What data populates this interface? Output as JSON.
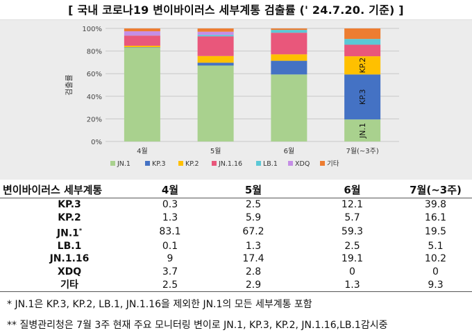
{
  "title": "[ 국내 코로나19 변이바이러스 세부계통 검출률 (' 24.7.20. 기준) ]",
  "chart_data": {
    "type": "bar",
    "stacked": true,
    "percent": true,
    "categories": [
      "4월",
      "5월",
      "6월",
      "7월(~3주)"
    ],
    "ylabel": "검출률",
    "ylim": [
      0,
      100
    ],
    "yticks": [
      "0%",
      "20%",
      "40%",
      "60%",
      "80%",
      "100%"
    ],
    "grid": true,
    "legend_position": "bottom",
    "series": [
      {
        "name": "JN.1",
        "color": "#a9d18e",
        "values": [
          83.1,
          67.2,
          59.3,
          19.5
        ]
      },
      {
        "name": "KP.3",
        "color": "#4472c4",
        "values": [
          0.3,
          2.5,
          12.1,
          39.8
        ]
      },
      {
        "name": "KP.2",
        "color": "#ffc000",
        "values": [
          1.3,
          5.9,
          5.7,
          16.1
        ]
      },
      {
        "name": "JN.1.16",
        "color": "#e9577b",
        "values": [
          9,
          17.4,
          19.1,
          10.2
        ]
      },
      {
        "name": "LB.1",
        "color": "#5bc8d6",
        "values": [
          0.1,
          1.3,
          2.5,
          5.1
        ]
      },
      {
        "name": "XDQ",
        "color": "#c58ee6",
        "values": [
          3.7,
          2.8,
          0,
          0
        ]
      },
      {
        "name": "기타",
        "color": "#ed7d31",
        "values": [
          2.5,
          2.9,
          1.3,
          9.3
        ]
      }
    ],
    "bar_labels": [
      {
        "category": "7월(~3주)",
        "series": "KP.2",
        "text": "KP.2"
      },
      {
        "category": "7월(~3주)",
        "series": "KP.3",
        "text": "KP.3"
      },
      {
        "category": "7월(~3주)",
        "series": "JN.1",
        "text": "JN.1"
      }
    ]
  },
  "table": {
    "header": [
      "변이바이러스 세부계통",
      "4월",
      "5월",
      "6월",
      "7월(~3주)"
    ],
    "rows": [
      {
        "label": "KP.3",
        "values": [
          "0.3",
          "2.5",
          "12.1",
          "39.8"
        ]
      },
      {
        "label": "KP.2",
        "values": [
          "1.3",
          "5.9",
          "5.7",
          "16.1"
        ]
      },
      {
        "label": "JN.1",
        "sup": "*",
        "values": [
          "83.1",
          "67.2",
          "59.3",
          "19.5"
        ]
      },
      {
        "label": "LB.1",
        "values": [
          "0.1",
          "1.3",
          "2.5",
          "5.1"
        ]
      },
      {
        "label": "JN.1.16",
        "values": [
          "9",
          "17.4",
          "19.1",
          "10.2"
        ]
      },
      {
        "label": "XDQ",
        "values": [
          "3.7",
          "2.8",
          "0",
          "0"
        ]
      },
      {
        "label": "기타",
        "values": [
          "2.5",
          "2.9",
          "1.3",
          "9.3"
        ]
      }
    ]
  },
  "notes": [
    "* JN.1은 KP.3, KP.2, LB.1, JN.1.16을 제외한 JN.1의 모든 세부계통 포함",
    "** 질병관리청은 7월 3주 현재 주요 모니터링 변이로 JN.1, KP.3, KP.2, JN.1.16,LB.1감시중"
  ]
}
